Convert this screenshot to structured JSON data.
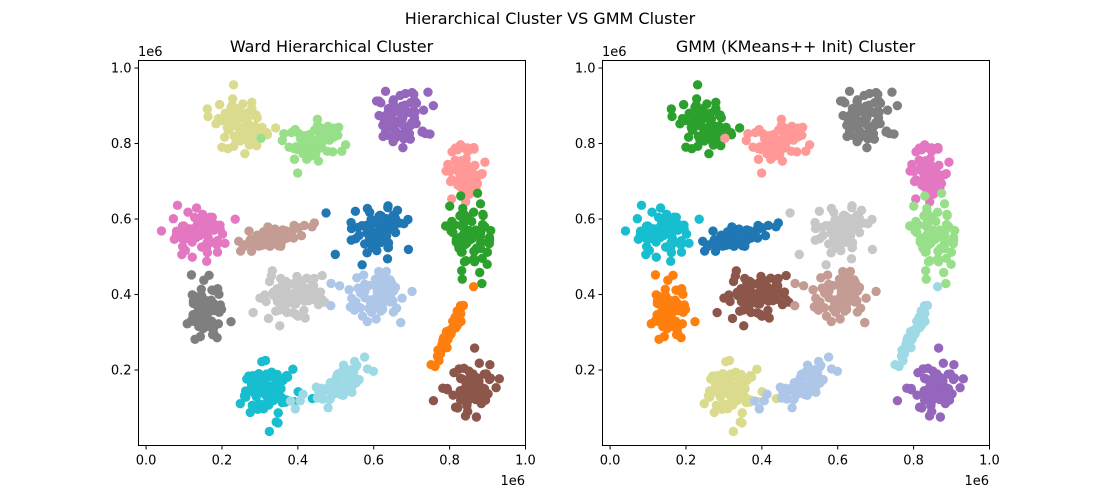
{
  "figure": {
    "suptitle": "Hierarchical Cluster VS GMM Cluster"
  },
  "chart_data": [
    {
      "type": "scatter",
      "title": "Ward Hierarchical Cluster",
      "xlabel": "",
      "ylabel": "",
      "xlim": [
        -0.02,
        1.0
      ],
      "ylim": [
        0.0,
        1.02
      ],
      "x_offset_text": "1e6",
      "y_offset_text": "1e6",
      "xticks": [
        0.0,
        0.2,
        0.4,
        0.6,
        0.8,
        1.0
      ],
      "xtick_labels": [
        "0.0",
        "0.2",
        "0.4",
        "0.6",
        "0.8",
        "1.0"
      ],
      "yticks": [
        0.2,
        0.4,
        0.6,
        0.8,
        1.0
      ],
      "ytick_labels": [
        "0.2",
        "0.4",
        "0.6",
        "0.8",
        "1.0"
      ],
      "grid": false,
      "marker_size": 7,
      "clusters": [
        {
          "color": "#dbdb8d",
          "cx": 0.25,
          "cy": 0.85,
          "sx": 0.035,
          "sy": 0.035,
          "n": 75,
          "rot": 0
        },
        {
          "color": "#98df8a",
          "cx": 0.43,
          "cy": 0.79,
          "sx": 0.04,
          "sy": 0.025,
          "n": 75,
          "rot": 0.35
        },
        {
          "color": "#9467bd",
          "cx": 0.67,
          "cy": 0.87,
          "sx": 0.035,
          "sy": 0.035,
          "n": 75,
          "rot": 0
        },
        {
          "color": "#ff9896",
          "cx": 0.84,
          "cy": 0.72,
          "sx": 0.025,
          "sy": 0.035,
          "n": 60,
          "rot": 0
        },
        {
          "color": "#e377c2",
          "cx": 0.14,
          "cy": 0.56,
          "sx": 0.04,
          "sy": 0.025,
          "n": 75,
          "rot": 0
        },
        {
          "color": "#c49c94",
          "cx": 0.33,
          "cy": 0.55,
          "sx": 0.045,
          "sy": 0.012,
          "n": 65,
          "rot": 0.3
        },
        {
          "color": "#1f77b4",
          "cx": 0.61,
          "cy": 0.57,
          "sx": 0.04,
          "sy": 0.035,
          "n": 75,
          "rot": 0
        },
        {
          "color": "#2ca02c",
          "cx": 0.85,
          "cy": 0.55,
          "sx": 0.03,
          "sy": 0.045,
          "n": 75,
          "rot": 0
        },
        {
          "color": "#7f7f7f",
          "cx": 0.16,
          "cy": 0.35,
          "sx": 0.03,
          "sy": 0.04,
          "n": 70,
          "rot": 0
        },
        {
          "color": "#c7c7c7",
          "cx": 0.39,
          "cy": 0.4,
          "sx": 0.045,
          "sy": 0.03,
          "n": 75,
          "rot": 0.2
        },
        {
          "color": "#aec7e8",
          "cx": 0.61,
          "cy": 0.4,
          "sx": 0.04,
          "sy": 0.035,
          "n": 75,
          "rot": 0
        },
        {
          "color": "#ff7f0e",
          "cx": 0.8,
          "cy": 0.3,
          "sx": 0.045,
          "sy": 0.005,
          "n": 55,
          "rot": 1.1
        },
        {
          "color": "#17becf",
          "cx": 0.32,
          "cy": 0.15,
          "sx": 0.04,
          "sy": 0.035,
          "n": 75,
          "rot": 0
        },
        {
          "color": "#9edae5",
          "cx": 0.51,
          "cy": 0.16,
          "sx": 0.045,
          "sy": 0.02,
          "n": 70,
          "rot": 0.55
        },
        {
          "color": "#8c564b",
          "cx": 0.86,
          "cy": 0.15,
          "sx": 0.03,
          "sy": 0.03,
          "n": 70,
          "rot": 0
        }
      ]
    },
    {
      "type": "scatter",
      "title": "GMM (KMeans++ Init) Cluster",
      "xlabel": "",
      "ylabel": "",
      "xlim": [
        -0.02,
        1.0
      ],
      "ylim": [
        0.0,
        1.02
      ],
      "x_offset_text": "1e6",
      "y_offset_text": "1e6",
      "xticks": [
        0.0,
        0.2,
        0.4,
        0.6,
        0.8,
        1.0
      ],
      "xtick_labels": [
        "0.0",
        "0.2",
        "0.4",
        "0.6",
        "0.8",
        "1.0"
      ],
      "yticks": [
        0.2,
        0.4,
        0.6,
        0.8,
        1.0
      ],
      "ytick_labels": [
        "0.2",
        "0.4",
        "0.6",
        "0.8",
        "1.0"
      ],
      "grid": false,
      "marker_size": 7,
      "clusters": [
        {
          "color": "#2ca02c",
          "cx": 0.25,
          "cy": 0.85,
          "sx": 0.035,
          "sy": 0.035,
          "n": 75,
          "rot": 0
        },
        {
          "color": "#ff9896",
          "cx": 0.43,
          "cy": 0.79,
          "sx": 0.04,
          "sy": 0.025,
          "n": 75,
          "rot": 0.35
        },
        {
          "color": "#7f7f7f",
          "cx": 0.67,
          "cy": 0.87,
          "sx": 0.035,
          "sy": 0.035,
          "n": 75,
          "rot": 0
        },
        {
          "color": "#e377c2",
          "cx": 0.84,
          "cy": 0.72,
          "sx": 0.025,
          "sy": 0.035,
          "n": 60,
          "rot": 0
        },
        {
          "color": "#17becf",
          "cx": 0.14,
          "cy": 0.56,
          "sx": 0.04,
          "sy": 0.025,
          "n": 75,
          "rot": 0
        },
        {
          "color": "#1f77b4",
          "cx": 0.33,
          "cy": 0.55,
          "sx": 0.045,
          "sy": 0.012,
          "n": 65,
          "rot": 0.3
        },
        {
          "color": "#c7c7c7",
          "cx": 0.61,
          "cy": 0.57,
          "sx": 0.04,
          "sy": 0.035,
          "n": 75,
          "rot": 0
        },
        {
          "color": "#98df8a",
          "cx": 0.85,
          "cy": 0.55,
          "sx": 0.03,
          "sy": 0.045,
          "n": 75,
          "rot": 0
        },
        {
          "color": "#ff7f0e",
          "cx": 0.16,
          "cy": 0.35,
          "sx": 0.03,
          "sy": 0.04,
          "n": 70,
          "rot": 0
        },
        {
          "color": "#8c564b",
          "cx": 0.39,
          "cy": 0.4,
          "sx": 0.045,
          "sy": 0.03,
          "n": 75,
          "rot": 0.2
        },
        {
          "color": "#c49c94",
          "cx": 0.61,
          "cy": 0.4,
          "sx": 0.04,
          "sy": 0.035,
          "n": 75,
          "rot": 0
        },
        {
          "color": "#9edae5",
          "cx": 0.8,
          "cy": 0.3,
          "sx": 0.045,
          "sy": 0.005,
          "n": 55,
          "rot": 1.1
        },
        {
          "color": "#dbdb8d",
          "cx": 0.32,
          "cy": 0.15,
          "sx": 0.04,
          "sy": 0.035,
          "n": 75,
          "rot": 0
        },
        {
          "color": "#aec7e8",
          "cx": 0.51,
          "cy": 0.16,
          "sx": 0.045,
          "sy": 0.02,
          "n": 70,
          "rot": 0.55
        },
        {
          "color": "#9467bd",
          "cx": 0.86,
          "cy": 0.15,
          "sx": 0.03,
          "sy": 0.03,
          "n": 70,
          "rot": 0
        }
      ]
    }
  ]
}
